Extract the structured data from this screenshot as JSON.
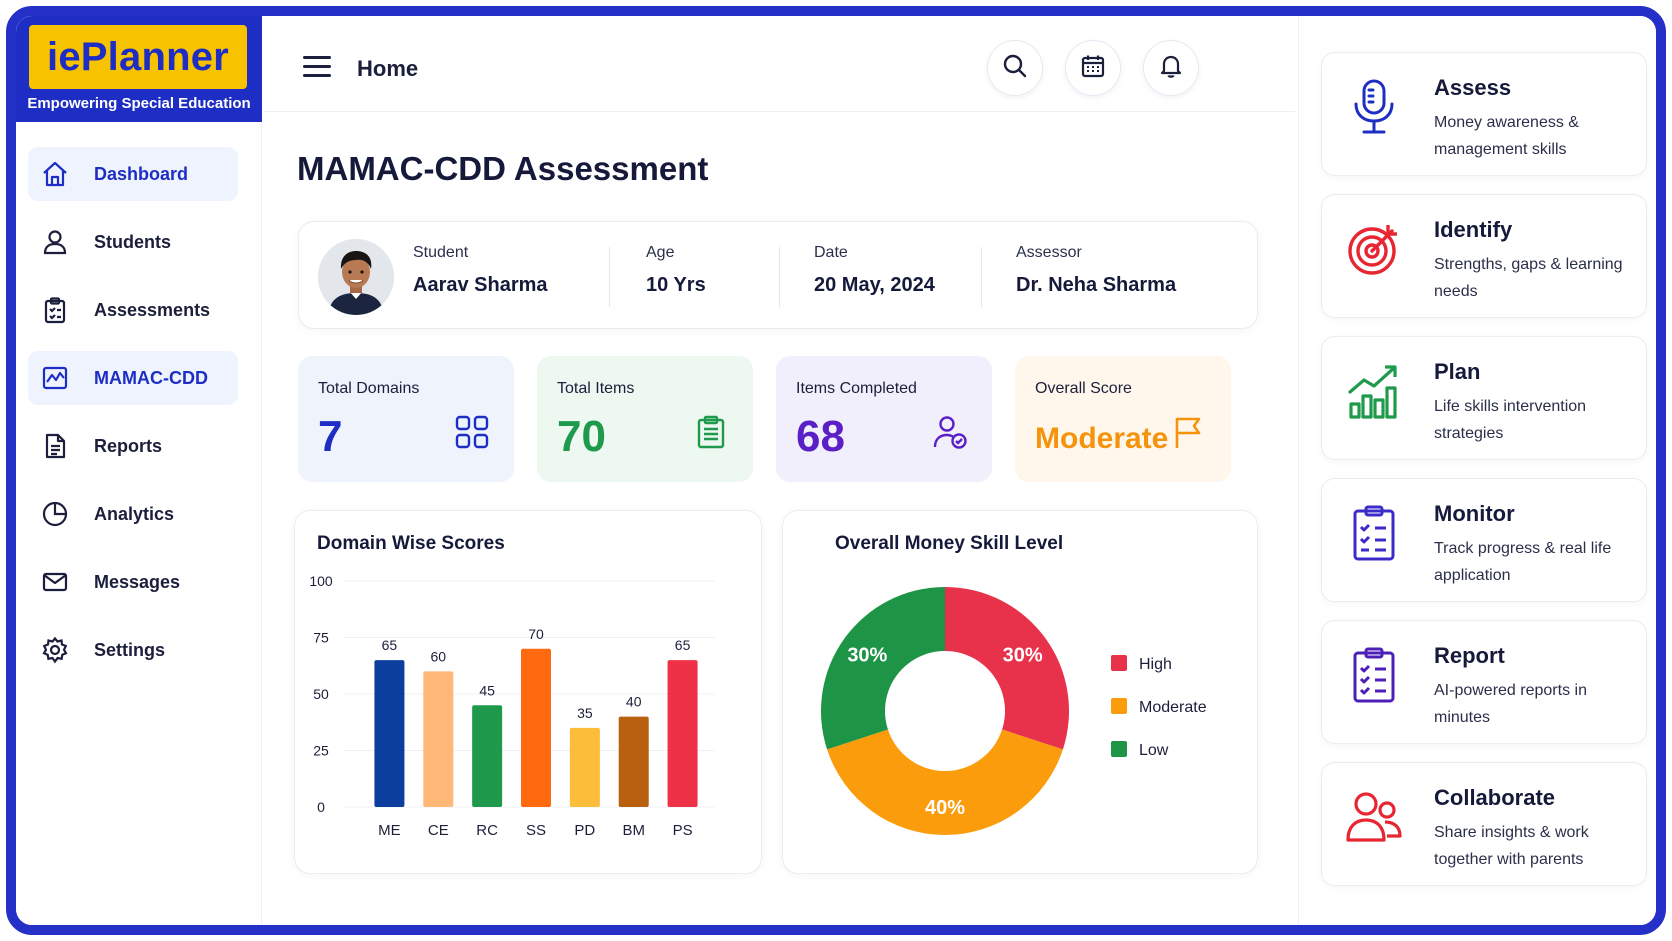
{
  "brand": {
    "name": "iePlanner",
    "tagline": "Empowering Special Education"
  },
  "sidebar": {
    "items": [
      {
        "label": "Dashboard",
        "icon": "home-icon",
        "active": true
      },
      {
        "label": "Students",
        "icon": "user-icon",
        "active": false
      },
      {
        "label": "Assessments",
        "icon": "clipboard-icon",
        "active": false
      },
      {
        "label": "MAMAC-CDD",
        "icon": "chart-line-icon",
        "active": true
      },
      {
        "label": "Reports",
        "icon": "document-icon",
        "active": false
      },
      {
        "label": "Analytics",
        "icon": "pie-chart-icon",
        "active": false
      },
      {
        "label": "Messages",
        "icon": "mail-icon",
        "active": false
      },
      {
        "label": "Settings",
        "icon": "gear-icon",
        "active": false
      }
    ]
  },
  "header": {
    "title": "Home",
    "icons": [
      "search-icon",
      "calendar-icon",
      "bell-icon"
    ]
  },
  "main": {
    "title": "MAMAC-CDD Assessment",
    "student": {
      "name_label": "Student",
      "name": "Aarav Sharma",
      "age_label": "Age",
      "age": "10 Yrs",
      "date_label": "Date",
      "date": "20 May, 2024",
      "assessor_label": "Assessor",
      "assessor": "Dr. Neha Sharma"
    },
    "stats": [
      {
        "label": "Total Domains",
        "value": "7",
        "icon": "grid-icon",
        "color": "#1e2ec4",
        "bg": "#eef3fc"
      },
      {
        "label": "Total Items",
        "value": "70",
        "icon": "clipboard-check-icon",
        "color": "#1f9a4c",
        "bg": "#edf8f1"
      },
      {
        "label": "Items Completed",
        "value": "68",
        "icon": "user-check-icon",
        "color": "#5b1fc8",
        "bg": "#f1effc"
      },
      {
        "label": "Overall Score",
        "value": "Moderate",
        "icon": "flag-icon",
        "color": "#f5930c",
        "bg": "#fff7ec"
      }
    ]
  },
  "chart_data": [
    {
      "type": "bar",
      "title": "Domain Wise Scores",
      "categories": [
        "ME",
        "CE",
        "RC",
        "SS",
        "PD",
        "BM",
        "PS"
      ],
      "values": [
        65,
        60,
        45,
        70,
        35,
        40,
        65
      ],
      "data_labels": [
        "65",
        "60",
        "45",
        "70",
        "35",
        "40",
        "65"
      ],
      "colors": [
        "#0c3e9e",
        "#ffb878",
        "#1f9a4c",
        "#ff6a10",
        "#fbbd3a",
        "#b8600d",
        "#ee3147"
      ],
      "ylim": [
        0,
        100
      ],
      "yticks": [
        "0",
        "25",
        "50",
        "75",
        "100"
      ],
      "grid": true
    },
    {
      "type": "pie",
      "title": "Overall Money Skill Level",
      "donut": true,
      "slices": [
        {
          "label": "High",
          "value": 30,
          "display": "30%",
          "color": "#e8314a"
        },
        {
          "label": "Moderate",
          "value": 40,
          "display": "40%",
          "color": "#fb9c0c"
        },
        {
          "label": "Low",
          "value": 30,
          "display": "30%",
          "color": "#1e9446"
        }
      ],
      "legend_position": "right"
    }
  ],
  "features": [
    {
      "title": "Assess",
      "desc": "Money awareness & management skills",
      "icon": "microphone-icon",
      "color": "#1e2ec4"
    },
    {
      "title": "Identify",
      "desc": "Strengths, gaps & learning needs",
      "icon": "target-icon",
      "color": "#e82632"
    },
    {
      "title": "Plan",
      "desc": "Life skills intervention strategies",
      "icon": "growth-chart-icon",
      "color": "#1f9a4c"
    },
    {
      "title": "Monitor",
      "desc": "Track progress & real life application",
      "icon": "checklist-icon",
      "color": "#3b2bc8"
    },
    {
      "title": "Report",
      "desc": "AI-powered reports in minutes",
      "icon": "report-clipboard-icon",
      "color": "#4b1fb8"
    },
    {
      "title": "Collaborate",
      "desc": "Share insights & work together with parents",
      "icon": "people-icon",
      "color": "#e82632"
    }
  ]
}
